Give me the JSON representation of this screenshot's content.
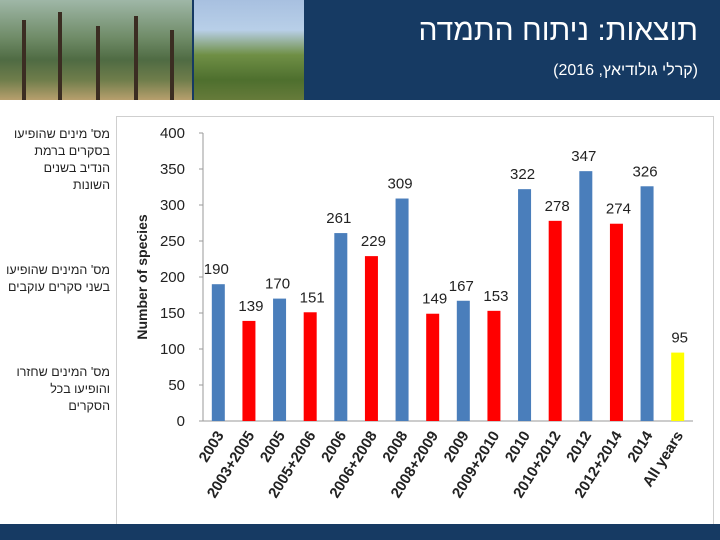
{
  "header": {
    "title": "תוצאות: ניתוח התמדה",
    "subtitle": "(קרלי גולודיאץ, 2016)"
  },
  "legend": [
    {
      "label": "מס' מינים שהופיעו בסקרים ברמת הנדיב בשנים השונות",
      "color": "#4a7ebb"
    },
    {
      "label": "מס' המינים שהופיעו בשני סקרים עוקבים",
      "color": "#ff0000"
    },
    {
      "label": "מס' המינים שחזרו והופיעו בכל הסקרים",
      "color": "#ffff00"
    }
  ],
  "chart_data": {
    "type": "bar",
    "ylabel": "Number of species",
    "ylim": [
      0,
      400
    ],
    "yticks": [
      0,
      50,
      100,
      150,
      200,
      250,
      300,
      350,
      400
    ],
    "grid": false,
    "categories": [
      "2003",
      "2003+2005",
      "2005",
      "2005+2006",
      "2006",
      "2006+2008",
      "2008",
      "2008+2009",
      "2009",
      "2009+2010",
      "2010",
      "2010+2012",
      "2012",
      "2012+2014",
      "2014",
      "All years"
    ],
    "values": [
      190,
      139,
      170,
      151,
      261,
      229,
      309,
      149,
      167,
      153,
      322,
      278,
      347,
      274,
      326,
      95
    ],
    "bar_colors": [
      "#4a7ebb",
      "#ff0000",
      "#4a7ebb",
      "#ff0000",
      "#4a7ebb",
      "#ff0000",
      "#4a7ebb",
      "#ff0000",
      "#4a7ebb",
      "#ff0000",
      "#4a7ebb",
      "#ff0000",
      "#4a7ebb",
      "#ff0000",
      "#4a7ebb",
      "#ffff00"
    ]
  }
}
